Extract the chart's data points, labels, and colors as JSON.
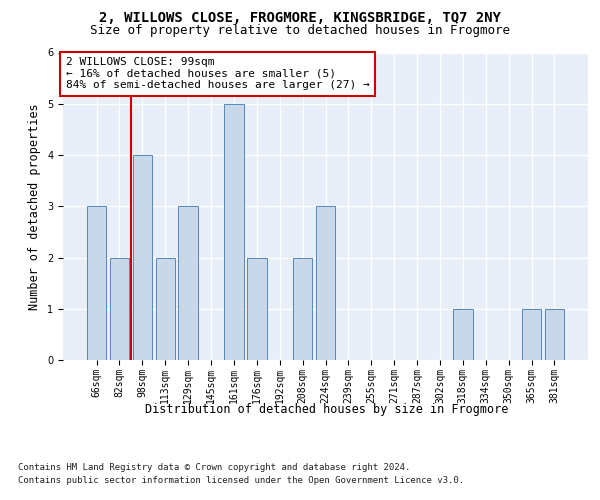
{
  "title_line1": "2, WILLOWS CLOSE, FROGMORE, KINGSBRIDGE, TQ7 2NY",
  "title_line2": "Size of property relative to detached houses in Frogmore",
  "xlabel": "Distribution of detached houses by size in Frogmore",
  "ylabel": "Number of detached properties",
  "footnote1": "Contains HM Land Registry data © Crown copyright and database right 2024.",
  "footnote2": "Contains public sector information licensed under the Open Government Licence v3.0.",
  "annotation_line1": "2 WILLOWS CLOSE: 99sqm",
  "annotation_line2": "← 16% of detached houses are smaller (5)",
  "annotation_line3": "84% of semi-detached houses are larger (27) →",
  "bar_labels": [
    "66sqm",
    "82sqm",
    "98sqm",
    "113sqm",
    "129sqm",
    "145sqm",
    "161sqm",
    "176sqm",
    "192sqm",
    "208sqm",
    "224sqm",
    "239sqm",
    "255sqm",
    "271sqm",
    "287sqm",
    "302sqm",
    "318sqm",
    "334sqm",
    "350sqm",
    "365sqm",
    "381sqm"
  ],
  "bar_values": [
    3,
    2,
    4,
    2,
    3,
    0,
    5,
    2,
    0,
    2,
    3,
    0,
    0,
    0,
    0,
    0,
    1,
    0,
    0,
    1,
    1
  ],
  "bar_color": "#c8d8ea",
  "bar_edge_color": "#5588bb",
  "highlight_bar_index": 2,
  "highlight_line_color": "#cc0000",
  "ylim": [
    0,
    6
  ],
  "yticks": [
    0,
    1,
    2,
    3,
    4,
    5,
    6
  ],
  "background_color": "#e8eef8",
  "grid_color": "#ffffff",
  "title_fontsize": 10,
  "subtitle_fontsize": 9,
  "axis_label_fontsize": 8.5,
  "tick_fontsize": 7,
  "annotation_fontsize": 8,
  "footnote_fontsize": 6.5
}
